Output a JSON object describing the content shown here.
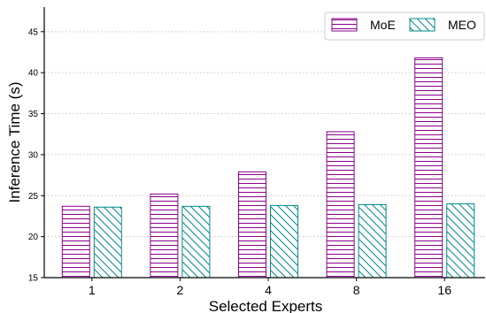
{
  "chart_data": {
    "type": "bar",
    "categories": [
      "1",
      "2",
      "4",
      "8",
      "16"
    ],
    "series": [
      {
        "name": "MoE",
        "values": [
          23.7,
          25.2,
          27.9,
          32.8,
          41.8
        ],
        "color": "#8b008b",
        "hatch": "horizontal"
      },
      {
        "name": "MEO",
        "values": [
          23.6,
          23.7,
          23.8,
          23.9,
          24.0
        ],
        "color": "#008b8b",
        "hatch": "diagonal"
      }
    ],
    "xlabel": "Selected Experts",
    "ylabel": "Inference Time (s)",
    "ylim": [
      15,
      48
    ],
    "yticks": [
      15,
      20,
      25,
      30,
      35,
      40,
      45
    ],
    "grid": "horizontal-dotted",
    "legend_position": "top-right"
  }
}
